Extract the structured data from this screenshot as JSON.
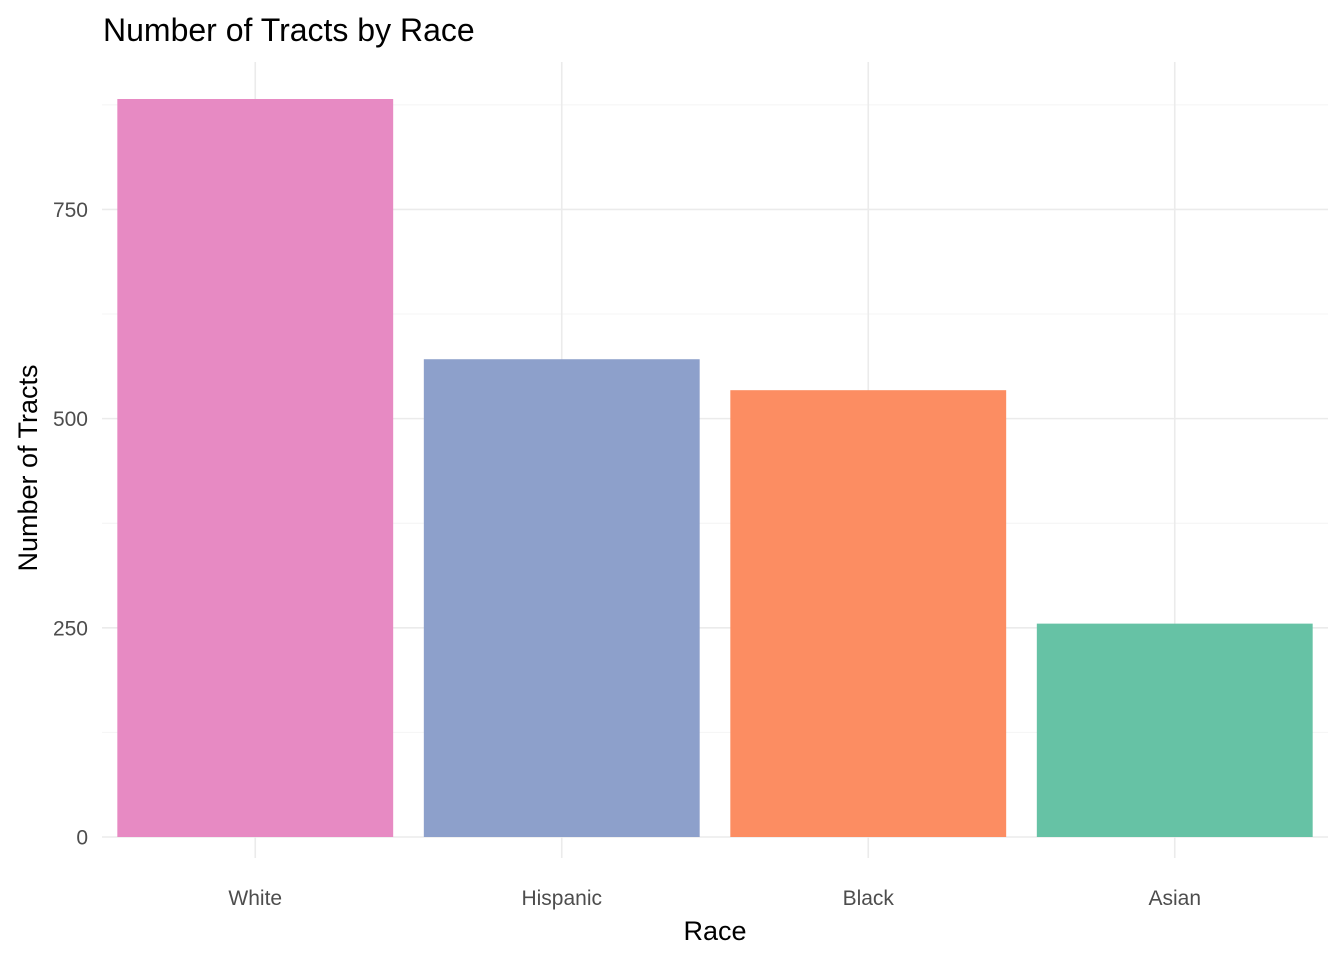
{
  "chart_data": {
    "type": "bar",
    "title": "Number of Tracts by Race",
    "xlabel": "Race",
    "ylabel": "Number of Tracts",
    "categories": [
      "White",
      "Hispanic",
      "Black",
      "Asian"
    ],
    "values": [
      882,
      571,
      534,
      255
    ],
    "colors": [
      "#E78AC3",
      "#8DA0CB",
      "#FC8D62",
      "#66C2A5"
    ],
    "ylim": [
      0,
      882
    ],
    "yticks": [
      0,
      250,
      500,
      750
    ],
    "yticks_minor": [
      125,
      375,
      625,
      875
    ],
    "grid": true,
    "legend": "none"
  }
}
